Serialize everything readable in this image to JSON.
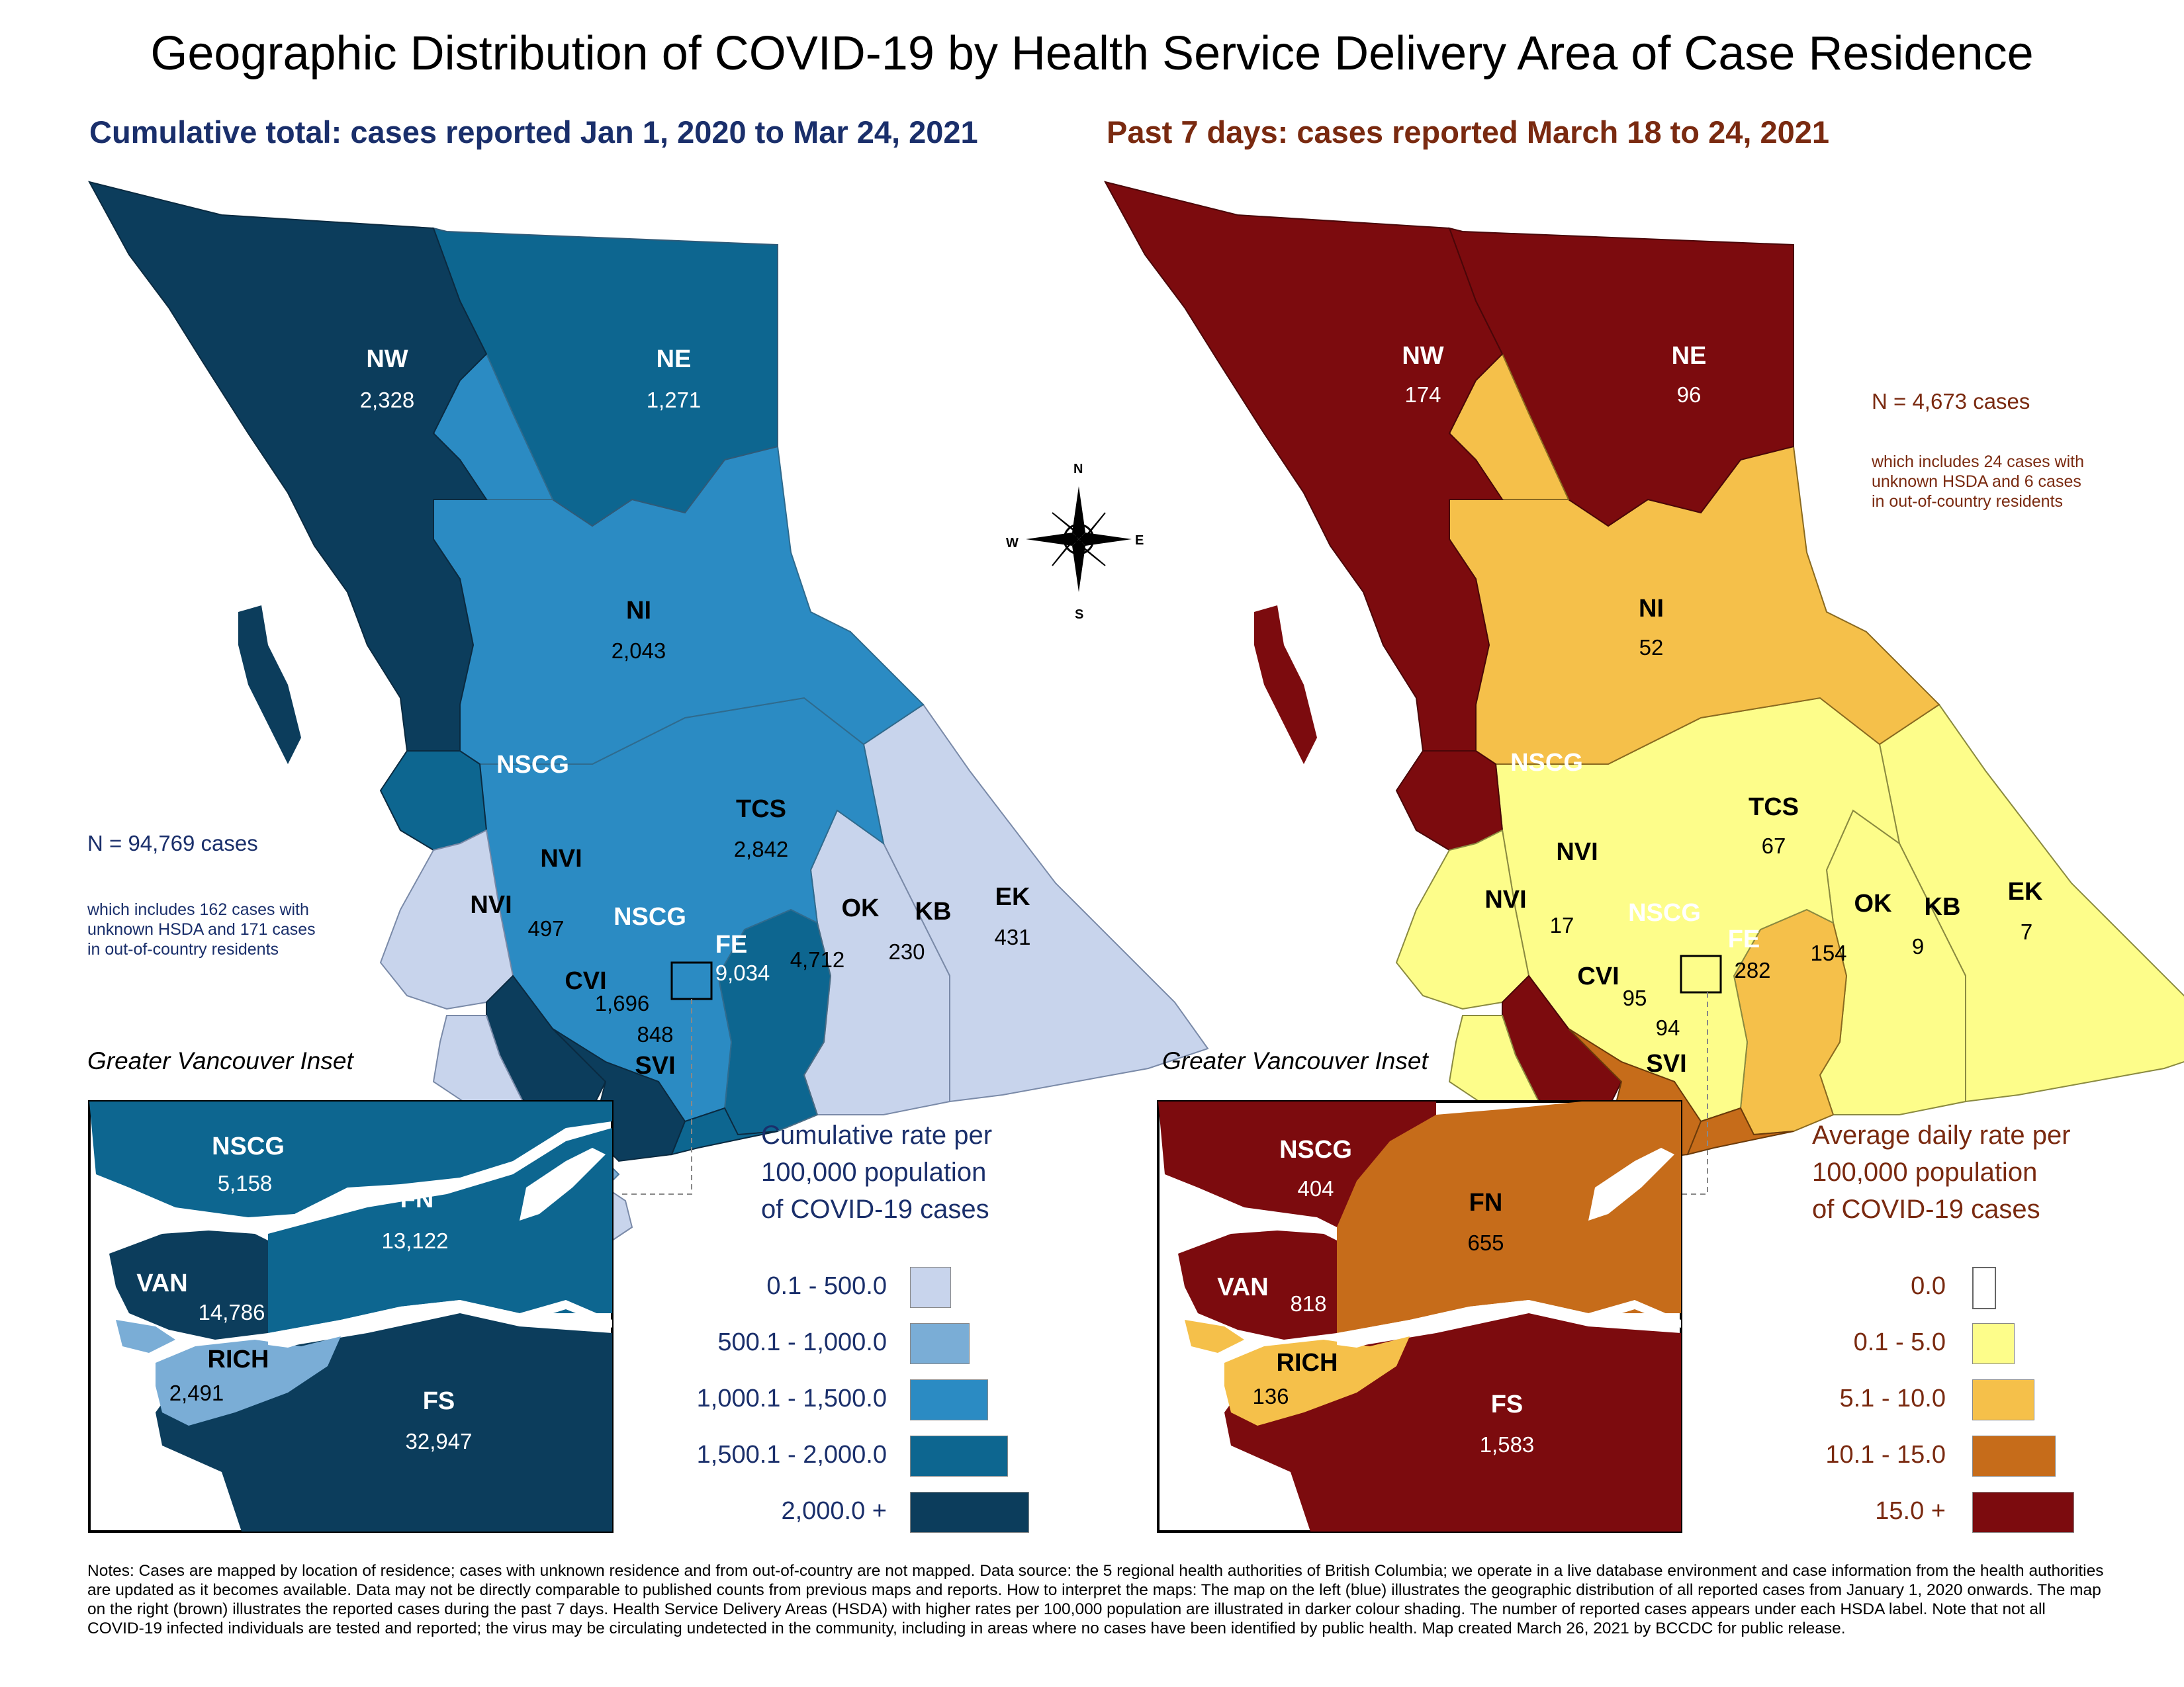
{
  "title": "Geographic Distribution of COVID-19 by Health Service Delivery Area of Case Residence",
  "left_map": {
    "subtitle": "Cumulative total: cases reported Jan 1, 2020 to Mar 24, 2021",
    "total": "N = 94,769 cases",
    "note": [
      "which includes 162 cases with",
      "unknown HSDA and 171 cases",
      "in out-of-country residents"
    ],
    "regions": [
      {
        "label": "NW",
        "value": "2,328"
      },
      {
        "label": "NE",
        "value": "1,271"
      },
      {
        "label": "NI",
        "value": "2,043"
      },
      {
        "label": "NSCG",
        "value": ""
      },
      {
        "label": "TCS",
        "value": "2,842"
      },
      {
        "label": "NVI",
        "value": ""
      },
      {
        "label": "NVI",
        "value": "497"
      },
      {
        "label": "NSCG",
        "value": ""
      },
      {
        "label": "FE",
        "value": "9,034"
      },
      {
        "label": "OK",
        "value": "4,712"
      },
      {
        "label": "KB",
        "value": "230"
      },
      {
        "label": "EK",
        "value": "431"
      },
      {
        "label": "CVI",
        "value": "1,696"
      },
      {
        "label": "",
        "value": "848"
      },
      {
        "label": "SVI",
        "value": ""
      }
    ],
    "inset_title": "Greater Vancouver Inset",
    "inset": [
      {
        "label": "NSCG",
        "value": "5,158"
      },
      {
        "label": "FN",
        "value": "13,122"
      },
      {
        "label": "VAN",
        "value": "14,786"
      },
      {
        "label": "RICH",
        "value": "2,491"
      },
      {
        "label": "FS",
        "value": "32,947"
      }
    ],
    "legend_title": [
      "Cumulative rate per",
      "100,000 population",
      "of COVID-19 cases"
    ],
    "legend": [
      {
        "label": "0.1 - 500.0",
        "color": "#c8d4ec"
      },
      {
        "label": "500.1 - 1,000.0",
        "color": "#7aadd6"
      },
      {
        "label": "1,000.1 - 1,500.0",
        "color": "#2b8bc3"
      },
      {
        "label": "1,500.1 - 2,000.0",
        "color": "#0d6690"
      },
      {
        "label": "2,000.0 +",
        "color": "#0c3d5c"
      }
    ]
  },
  "right_map": {
    "subtitle": "Past 7 days: cases reported March 18 to 24, 2021",
    "total": "N = 4,673 cases",
    "note": [
      "which includes 24 cases with",
      "unknown HSDA and 6 cases",
      "in out-of-country residents"
    ],
    "regions": [
      {
        "label": "NW",
        "value": "174"
      },
      {
        "label": "NE",
        "value": "96"
      },
      {
        "label": "NI",
        "value": "52"
      },
      {
        "label": "NSCG",
        "value": ""
      },
      {
        "label": "TCS",
        "value": "67"
      },
      {
        "label": "NVI",
        "value": ""
      },
      {
        "label": "NVI",
        "value": "17"
      },
      {
        "label": "NSCG",
        "value": ""
      },
      {
        "label": "FE",
        "value": "282"
      },
      {
        "label": "OK",
        "value": "154"
      },
      {
        "label": "KB",
        "value": "9"
      },
      {
        "label": "EK",
        "value": "7"
      },
      {
        "label": "CVI",
        "value": "95"
      },
      {
        "label": "",
        "value": "94"
      },
      {
        "label": "SVI",
        "value": ""
      }
    ],
    "inset_title": "Greater Vancouver Inset",
    "inset": [
      {
        "label": "NSCG",
        "value": "404"
      },
      {
        "label": "FN",
        "value": "655"
      },
      {
        "label": "VAN",
        "value": "818"
      },
      {
        "label": "RICH",
        "value": "136"
      },
      {
        "label": "FS",
        "value": "1,583"
      }
    ],
    "legend_title": [
      "Average daily rate per",
      "100,000 population",
      "of COVID-19 cases"
    ],
    "legend": [
      {
        "label": "0.0",
        "color": "#ffffff"
      },
      {
        "label": "0.1 - 5.0",
        "color": "#fdfd8a"
      },
      {
        "label": "5.1 - 10.0",
        "color": "#f5c04a"
      },
      {
        "label": "10.1 - 15.0",
        "color": "#c66c1a"
      },
      {
        "label": "15.0 +",
        "color": "#7c0b0e"
      }
    ]
  },
  "compass": {
    "n": "N",
    "s": "S",
    "e": "E",
    "w": "W"
  },
  "notes": "Notes: Cases are mapped by location of residence; cases with unknown residence and from out-of-country are not mapped. Data source: the 5 regional health authorities of British Columbia; we operate in a live database environment and case information from the health authorities are updated as it becomes available. Data may not be directly comparable to published counts from previous maps and reports. How to interpret the maps: The map on the left (blue) illustrates the geographic distribution of all reported cases from January 1, 2020 onwards. The map on the right (brown) illustrates the reported cases during the past 7 days. Health Service Delivery Areas (HSDA) with higher rates per 100,000 population are illustrated in darker colour shading. The number of reported cases appears under each HSDA label. Note that not all COVID-19 infected individuals are tested and reported; the virus may be circulating undetected in the community, including in areas where no cases have been identified by public health. Map created March 26, 2021 by BCCDC for public release."
}
